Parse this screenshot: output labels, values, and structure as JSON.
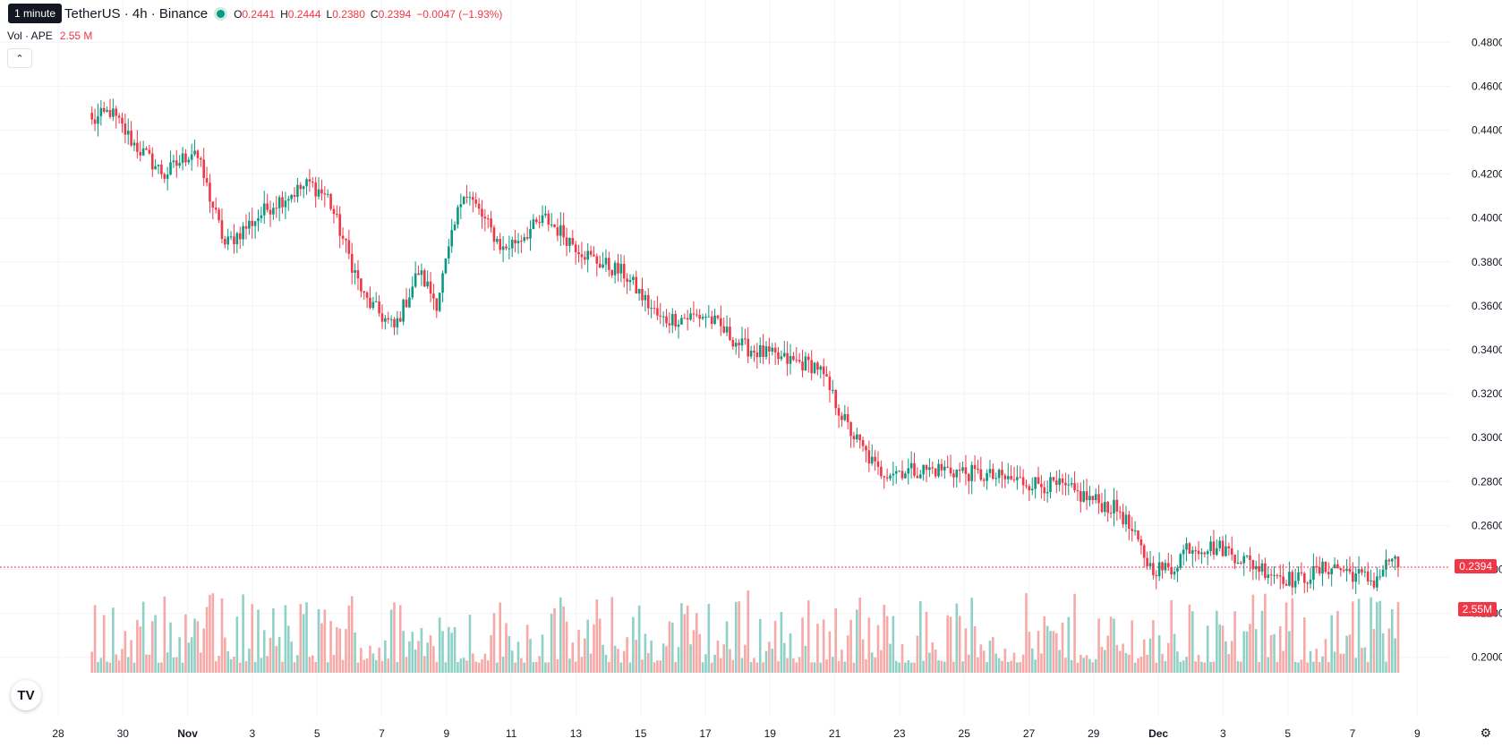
{
  "header": {
    "tooltip": "1 minute",
    "symbol_title": "TetherUS · 4h · Binance",
    "ohlc": {
      "o_label": "O",
      "o": "0.2441",
      "h_label": "H",
      "h": "0.2444",
      "l_label": "L",
      "l": "0.2380",
      "c_label": "C",
      "c": "0.2394",
      "change": "−0.0047 (−1.93%)"
    },
    "volume_label": "Vol · APE",
    "volume_value": "2.55 M"
  },
  "badges": {
    "price": "0.2394",
    "volume": "2.55M"
  },
  "colors": {
    "up": "#089981",
    "down": "#f23645",
    "up_volume": "#8fd1c6",
    "down_volume": "#f7a9a7",
    "grid": "#f0f3fa",
    "text": "#131722"
  },
  "icons": {
    "collapse": "chevron-up-icon",
    "logo": "tradingview-logo",
    "settings": "gear-icon"
  },
  "chart_data": {
    "type": "candlestick",
    "interval": "4h",
    "y_axis": {
      "min": 0.195,
      "max": 0.485,
      "ticks": [
        "0.4800",
        "0.4600",
        "0.4400",
        "0.4200",
        "0.4000",
        "0.3800",
        "0.3600",
        "0.3400",
        "0.3200",
        "0.3000",
        "0.2800",
        "0.2600",
        "0.2400",
        "0.2200",
        "0.2000"
      ]
    },
    "x_axis": {
      "start_tick_index": 2.3,
      "ticks": [
        "28",
        "30",
        "Nov",
        "3",
        "5",
        "7",
        "9",
        "11",
        "13",
        "15",
        "17",
        "19",
        "21",
        "23",
        "25",
        "27",
        "29",
        "Dec",
        "3",
        "5",
        "7",
        "9"
      ],
      "bold_ticks": [
        "Nov",
        "Dec"
      ]
    },
    "last_price": 0.2394,
    "grid": true,
    "series": [
      {
        "name": "Price",
        "anchors": [
          {
            "t": 0,
            "v": 0.442
          },
          {
            "t": 6,
            "v": 0.447
          },
          {
            "t": 14,
            "v": 0.432
          },
          {
            "t": 24,
            "v": 0.418
          },
          {
            "t": 34,
            "v": 0.43
          },
          {
            "t": 44,
            "v": 0.386
          },
          {
            "t": 60,
            "v": 0.405
          },
          {
            "t": 72,
            "v": 0.414
          },
          {
            "t": 78,
            "v": 0.408
          },
          {
            "t": 90,
            "v": 0.362
          },
          {
            "t": 100,
            "v": 0.348
          },
          {
            "t": 108,
            "v": 0.374
          },
          {
            "t": 114,
            "v": 0.36
          },
          {
            "t": 123,
            "v": 0.412
          },
          {
            "t": 136,
            "v": 0.384
          },
          {
            "t": 150,
            "v": 0.398
          },
          {
            "t": 165,
            "v": 0.38
          },
          {
            "t": 176,
            "v": 0.373
          },
          {
            "t": 188,
            "v": 0.352
          },
          {
            "t": 203,
            "v": 0.354
          },
          {
            "t": 215,
            "v": 0.34
          },
          {
            "t": 228,
            "v": 0.334
          },
          {
            "t": 240,
            "v": 0.331
          },
          {
            "t": 250,
            "v": 0.303
          },
          {
            "t": 260,
            "v": 0.283
          },
          {
            "t": 282,
            "v": 0.284
          },
          {
            "t": 300,
            "v": 0.28
          },
          {
            "t": 320,
            "v": 0.276
          },
          {
            "t": 340,
            "v": 0.265
          },
          {
            "t": 350,
            "v": 0.2395
          },
          {
            "t": 357,
            "v": 0.238
          },
          {
            "t": 362,
            "v": 0.249
          },
          {
            "t": 374,
            "v": 0.248
          },
          {
            "t": 385,
            "v": 0.24
          },
          {
            "t": 398,
            "v": 0.233
          },
          {
            "t": 410,
            "v": 0.24
          },
          {
            "t": 418,
            "v": 0.236
          },
          {
            "t": 424,
            "v": 0.233
          },
          {
            "t": 430,
            "v": 0.244
          },
          {
            "t": 432,
            "v": 0.2394
          }
        ]
      },
      {
        "name": "Volume",
        "volume_max": 1.3
      }
    ]
  }
}
